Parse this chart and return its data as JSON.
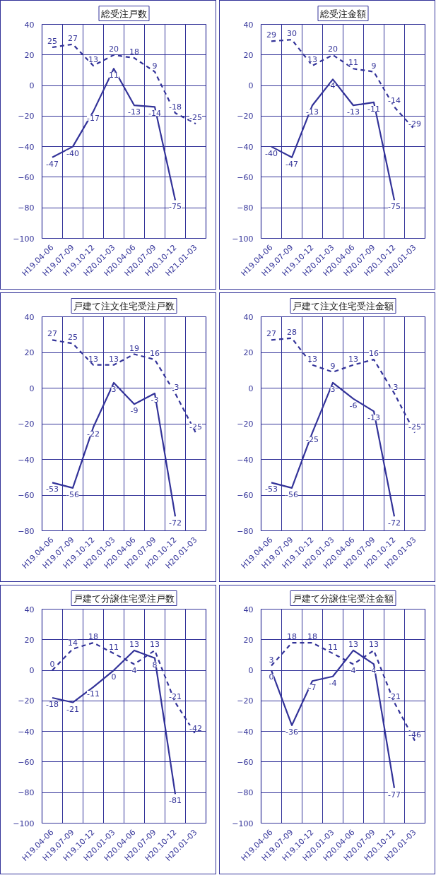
{
  "chart_data": [
    {
      "type": "line",
      "title": "総受注戸数",
      "categories": [
        "H19.04-06",
        "H19.07-09",
        "H19.10-12",
        "H20.01-03",
        "H20.04-06",
        "H20.07-09",
        "H20.10-12",
        "H21.01-03"
      ],
      "ylim": [
        -100,
        40
      ],
      "yticks": [
        -100,
        -80,
        -60,
        -40,
        -20,
        0,
        20,
        40
      ],
      "grid": true,
      "data_labels": true,
      "series": [
        {
          "color": "#333399",
          "line_style": "solid",
          "values": [
            -47,
            -40,
            -17,
            11,
            -13,
            -14,
            -75,
            null
          ]
        },
        {
          "color": "#333399",
          "line_style": "dashed",
          "values": [
            25,
            27,
            13,
            20,
            18,
            9,
            -18,
            -25
          ]
        }
      ]
    },
    {
      "type": "line",
      "title": "総受注金額",
      "categories": [
        "H19.04-06",
        "H19.07-09",
        "H19.10-12",
        "H20.01-03",
        "H20.04-06",
        "H20.07-09",
        "H20.10-12",
        "H20.01-03"
      ],
      "ylim": [
        -100,
        40
      ],
      "yticks": [
        -100,
        -80,
        -60,
        -40,
        -20,
        0,
        20,
        40
      ],
      "grid": true,
      "data_labels": true,
      "series": [
        {
          "color": "#333399",
          "line_style": "solid",
          "values": [
            -40,
            -47,
            -13,
            4,
            -13,
            -11,
            -75,
            null
          ]
        },
        {
          "color": "#333399",
          "line_style": "dashed",
          "values": [
            29,
            30,
            13,
            20,
            11,
            9,
            -14,
            -29
          ]
        }
      ]
    },
    {
      "type": "line",
      "title": "戸建て注文住宅受注戸数",
      "categories": [
        "H19.04-06",
        "H19.07-09",
        "H19.10-12",
        "H20.01-03",
        "H20.04-06",
        "H20.07-09",
        "H20.10-12",
        "H20.01-03"
      ],
      "ylim": [
        -80,
        40
      ],
      "yticks": [
        -80,
        -60,
        -40,
        -20,
        0,
        20,
        40
      ],
      "grid": true,
      "data_labels": true,
      "series": [
        {
          "color": "#333399",
          "line_style": "solid",
          "values": [
            -53,
            -56,
            -22,
            3,
            -9,
            -3,
            -72,
            null
          ]
        },
        {
          "color": "#333399",
          "line_style": "dashed",
          "values": [
            27,
            25,
            13,
            13,
            19,
            16,
            -3,
            -25
          ]
        }
      ]
    },
    {
      "type": "line",
      "title": "戸建て注文住宅受注金額",
      "categories": [
        "H19.04-06",
        "H19.07-09",
        "H19.10-12",
        "H20.01-03",
        "H20.04-06",
        "H20.07-09",
        "H20.10-12",
        "H20.01-03"
      ],
      "ylim": [
        -80,
        40
      ],
      "yticks": [
        -80,
        -60,
        -40,
        -20,
        0,
        20,
        40
      ],
      "grid": true,
      "data_labels": true,
      "series": [
        {
          "color": "#333399",
          "line_style": "solid",
          "values": [
            -53,
            -56,
            -25,
            3,
            -6,
            -13,
            -72,
            null
          ]
        },
        {
          "color": "#333399",
          "line_style": "dashed",
          "values": [
            27,
            28,
            13,
            9,
            13,
            16,
            -3,
            -25
          ]
        }
      ]
    },
    {
      "type": "line",
      "title": "戸建て分譲住宅受注戸数",
      "categories": [
        "H19.04-06",
        "H19.07-09",
        "H19.10-12",
        "H20.01-03",
        "H20.04-06",
        "H20.07-09",
        "H20.10-12",
        "H20.01-03"
      ],
      "ylim": [
        -100,
        40
      ],
      "yticks": [
        -100,
        -80,
        -60,
        -40,
        -20,
        0,
        20,
        40
      ],
      "grid": true,
      "data_labels": true,
      "series": [
        {
          "color": "#333399",
          "line_style": "solid",
          "values": [
            -18,
            -21,
            -11,
            0,
            13,
            8,
            -81,
            null
          ]
        },
        {
          "color": "#333399",
          "line_style": "dashed",
          "values": [
            0,
            14,
            18,
            11,
            4,
            13,
            -21,
            -42
          ]
        }
      ]
    },
    {
      "type": "line",
      "title": "戸建て分譲住宅受注金額",
      "categories": [
        "H19.04-06",
        "H19.07-09",
        "H19.10-12",
        "H20.01-03",
        "H20.04-06",
        "H20.07-09",
        "H20.10-12",
        "H20.01-03"
      ],
      "ylim": [
        -100,
        40
      ],
      "yticks": [
        -100,
        -80,
        -60,
        -40,
        -20,
        0,
        20,
        40
      ],
      "grid": true,
      "data_labels": true,
      "series": [
        {
          "color": "#333399",
          "line_style": "solid",
          "values": [
            0,
            -36,
            -7,
            -4,
            13,
            4,
            -77,
            null
          ]
        },
        {
          "color": "#333399",
          "line_style": "dashed",
          "values": [
            3,
            18,
            18,
            11,
            4,
            13,
            -21,
            -46
          ]
        }
      ]
    }
  ]
}
